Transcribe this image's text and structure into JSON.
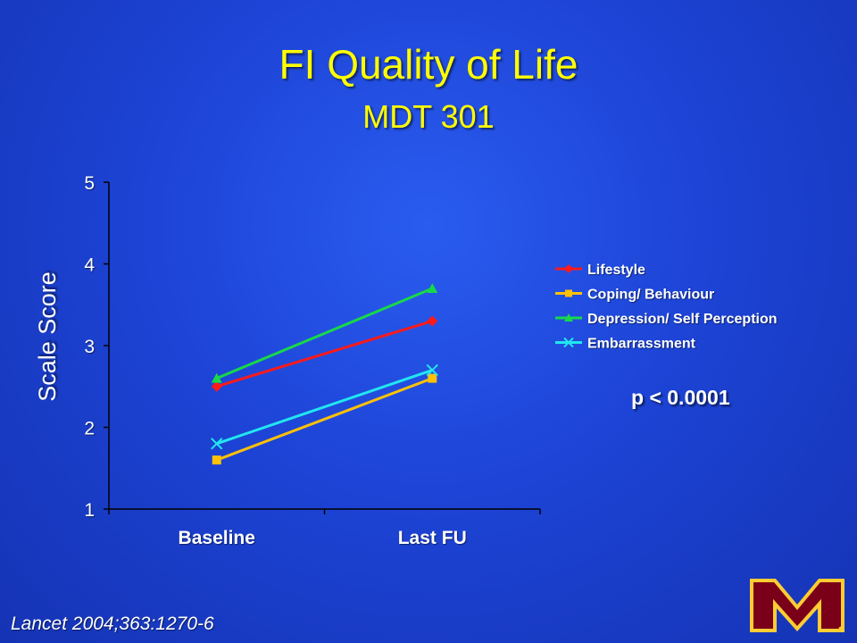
{
  "slide": {
    "title": "FI Quality of Life",
    "subtitle": "MDT 301",
    "citation": "Lancet 2004;363:1270-6",
    "pvalue": "p < 0.0001",
    "logo_text": "M"
  },
  "colors": {
    "background": "#1d44d6",
    "title": "#ffff00",
    "text": "#ffffff"
  },
  "chart_data": {
    "type": "line",
    "categories": [
      "Baseline",
      "Last FU"
    ],
    "ylabel": "Scale Score",
    "xlabel": "",
    "ylim": [
      1,
      5
    ],
    "yticks": [
      "1",
      "2",
      "3",
      "4",
      "5"
    ],
    "legend_position": "right",
    "series": [
      {
        "name": "Lifestyle",
        "values": [
          2.5,
          3.3
        ],
        "color": "#ff1a1a",
        "marker": "diamond"
      },
      {
        "name": "Coping/ Behaviour",
        "values": [
          1.6,
          2.6
        ],
        "color": "#ffc107",
        "marker": "square"
      },
      {
        "name": "Depression/ Self Perception",
        "values": [
          2.6,
          3.7
        ],
        "color": "#18d84a",
        "marker": "triangle"
      },
      {
        "name": "Embarrassment",
        "values": [
          1.8,
          2.7
        ],
        "color": "#22e6f0",
        "marker": "x"
      }
    ]
  }
}
